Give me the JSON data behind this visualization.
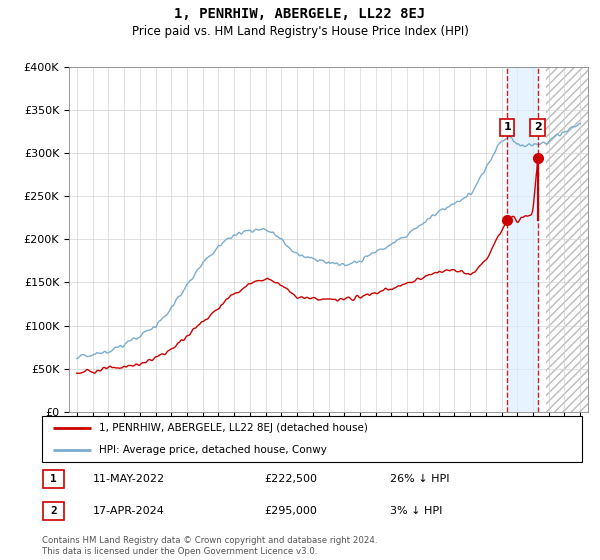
{
  "title": "1, PENRHIW, ABERGELE, LL22 8EJ",
  "subtitle": "Price paid vs. HM Land Registry's House Price Index (HPI)",
  "ylim": [
    0,
    400000
  ],
  "yticks": [
    0,
    50000,
    100000,
    150000,
    200000,
    250000,
    300000,
    350000,
    400000
  ],
  "ytick_labels": [
    "£0",
    "£50K",
    "£100K",
    "£150K",
    "£200K",
    "£250K",
    "£300K",
    "£350K",
    "£400K"
  ],
  "red_color": "#cc0000",
  "blue_color": "#7aadcf",
  "shade_color": "#ddeeff",
  "hatch_color": "#cccccc",
  "marker1_value": 222500,
  "marker2_value": 295000,
  "legend_label_red": "1, PENRHIW, ABERGELE, LL22 8EJ (detached house)",
  "legend_label_blue": "HPI: Average price, detached house, Conwy",
  "table_row1": [
    "1",
    "11-MAY-2022",
    "£222,500",
    "26% ↓ HPI"
  ],
  "table_row2": [
    "2",
    "17-APR-2024",
    "£295,000",
    "3% ↓ HPI"
  ],
  "footer": "Contains HM Land Registry data © Crown copyright and database right 2024.\nThis data is licensed under the Open Government Licence v3.0.",
  "shade_x_start": 2022.36,
  "shade_x_end": 2024.29,
  "hatch_x_start": 2024.8,
  "hatch_x_end": 2027.5,
  "marker1_x": 2022.36,
  "marker2_x": 2024.29,
  "xlim_left": 1994.5,
  "xlim_right": 2027.5,
  "red_keypoints_x": [
    1995,
    1996,
    1997,
    1998,
    1999,
    2000,
    2001,
    2002,
    2003,
    2004,
    2005,
    2006,
    2007,
    2008,
    2009,
    2010,
    2011,
    2012,
    2013,
    2014,
    2015,
    2016,
    2017,
    2018,
    2019,
    2020,
    2021,
    2022.0,
    2022.36,
    2022.8,
    2023.0,
    2023.5,
    2024.0,
    2024.29
  ],
  "red_keypoints_y": [
    45000,
    47000,
    50000,
    52000,
    55000,
    62000,
    72000,
    88000,
    105000,
    120000,
    138000,
    148000,
    155000,
    148000,
    133000,
    132000,
    130000,
    130000,
    133000,
    138000,
    143000,
    148000,
    155000,
    163000,
    165000,
    158000,
    175000,
    210000,
    222500,
    228000,
    223000,
    228000,
    230000,
    295000
  ],
  "blue_keypoints_x": [
    1995,
    1996,
    1997,
    1998,
    1999,
    2000,
    2001,
    2002,
    2003,
    2004,
    2005,
    2006,
    2007,
    2008,
    2009,
    2010,
    2011,
    2012,
    2013,
    2014,
    2015,
    2016,
    2017,
    2018,
    2019,
    2020,
    2021,
    2022.0,
    2022.5,
    2023.0,
    2023.5,
    2024.0,
    2024.5,
    2025.0,
    2026.0,
    2027.0
  ],
  "blue_keypoints_y": [
    64000,
    66000,
    70000,
    78000,
    88000,
    100000,
    120000,
    148000,
    172000,
    192000,
    205000,
    210000,
    212000,
    200000,
    182000,
    178000,
    173000,
    170000,
    175000,
    185000,
    195000,
    205000,
    218000,
    232000,
    240000,
    252000,
    283000,
    315000,
    320000,
    310000,
    308000,
    310000,
    312000,
    315000,
    325000,
    335000
  ]
}
